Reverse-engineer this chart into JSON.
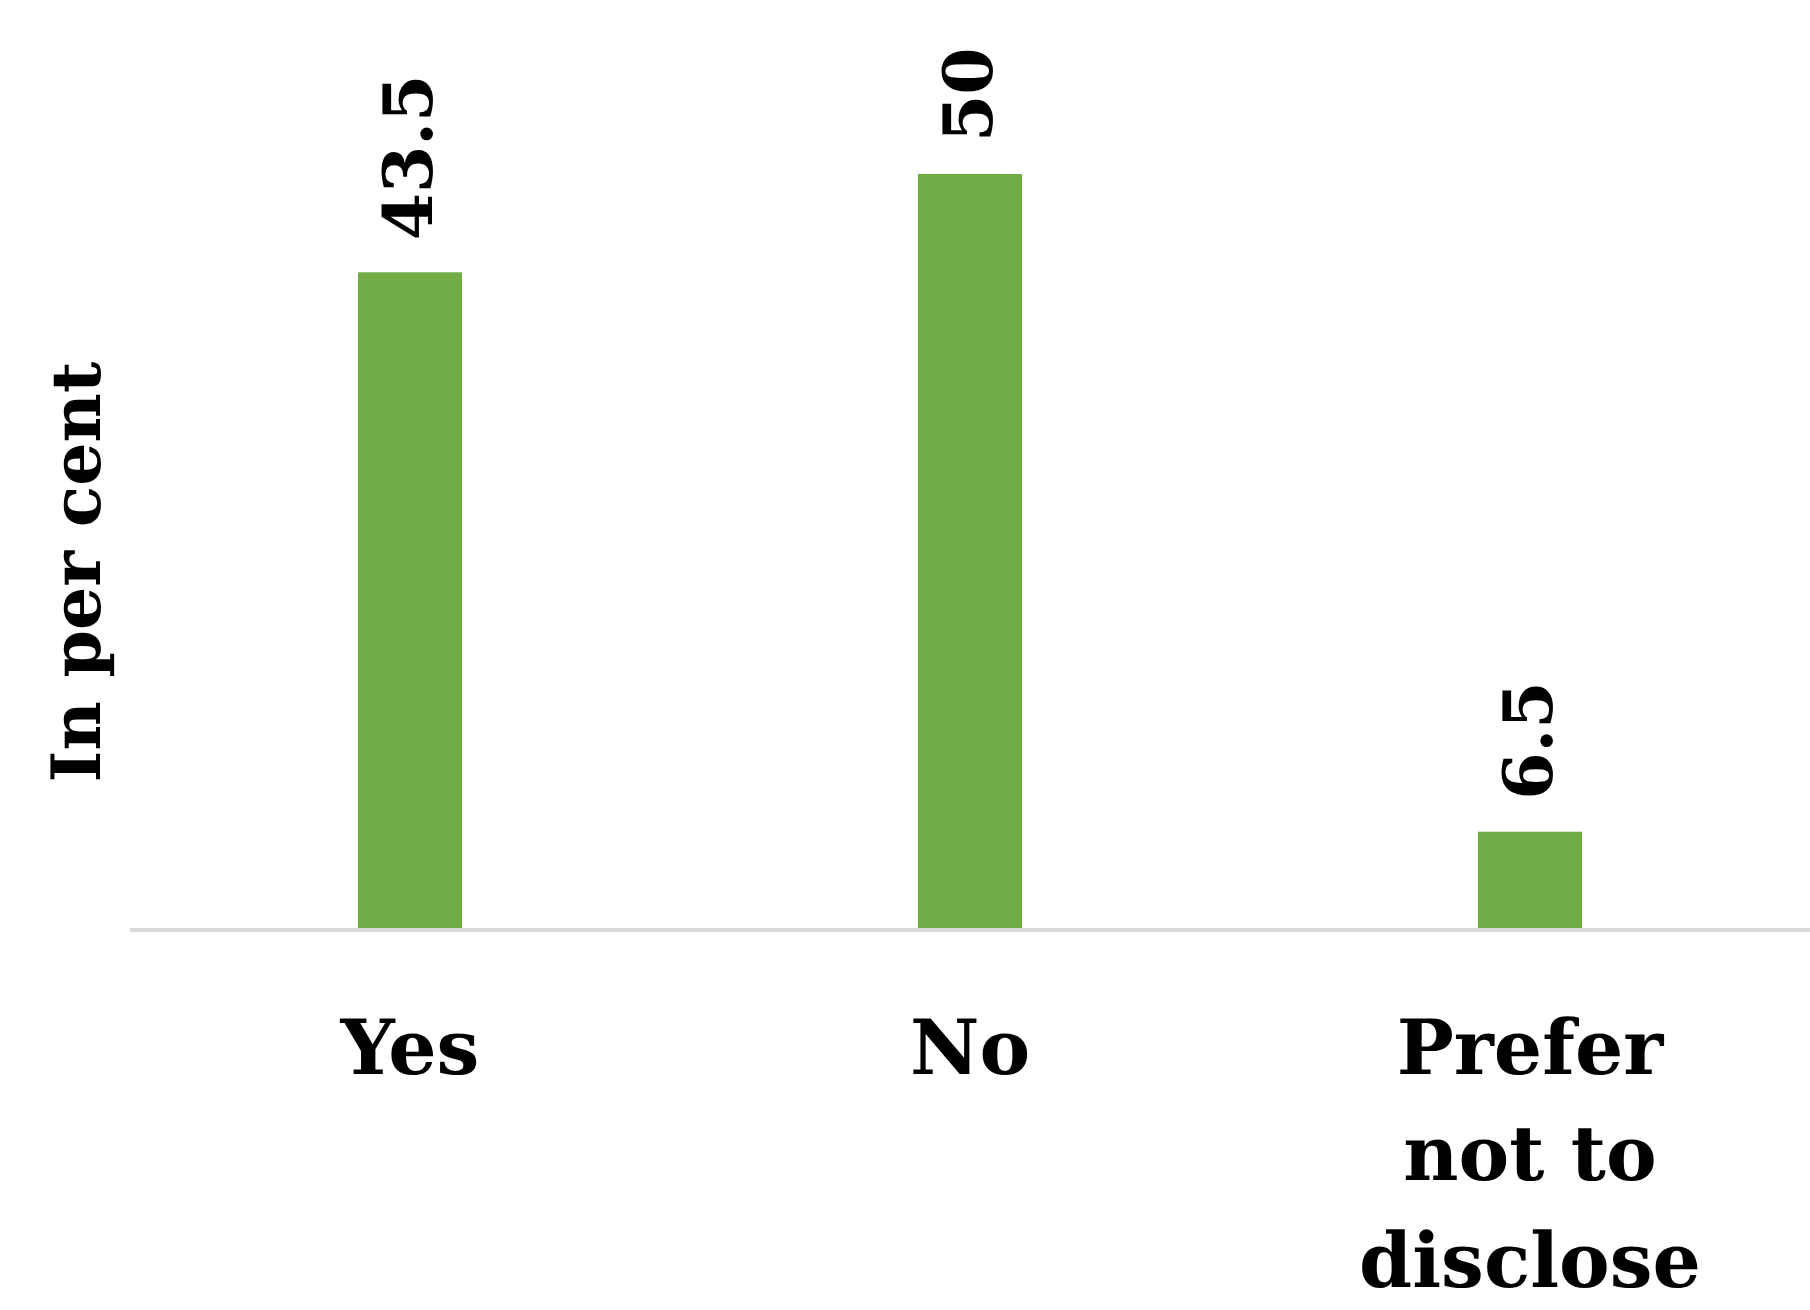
{
  "chart_data": {
    "type": "bar",
    "ylabel": "In per cent",
    "categories": [
      "Yes",
      "No",
      "Prefer not to disclose"
    ],
    "values": [
      43.5,
      50,
      6.5
    ],
    "color": "#70ad47",
    "data_labels": true
  }
}
